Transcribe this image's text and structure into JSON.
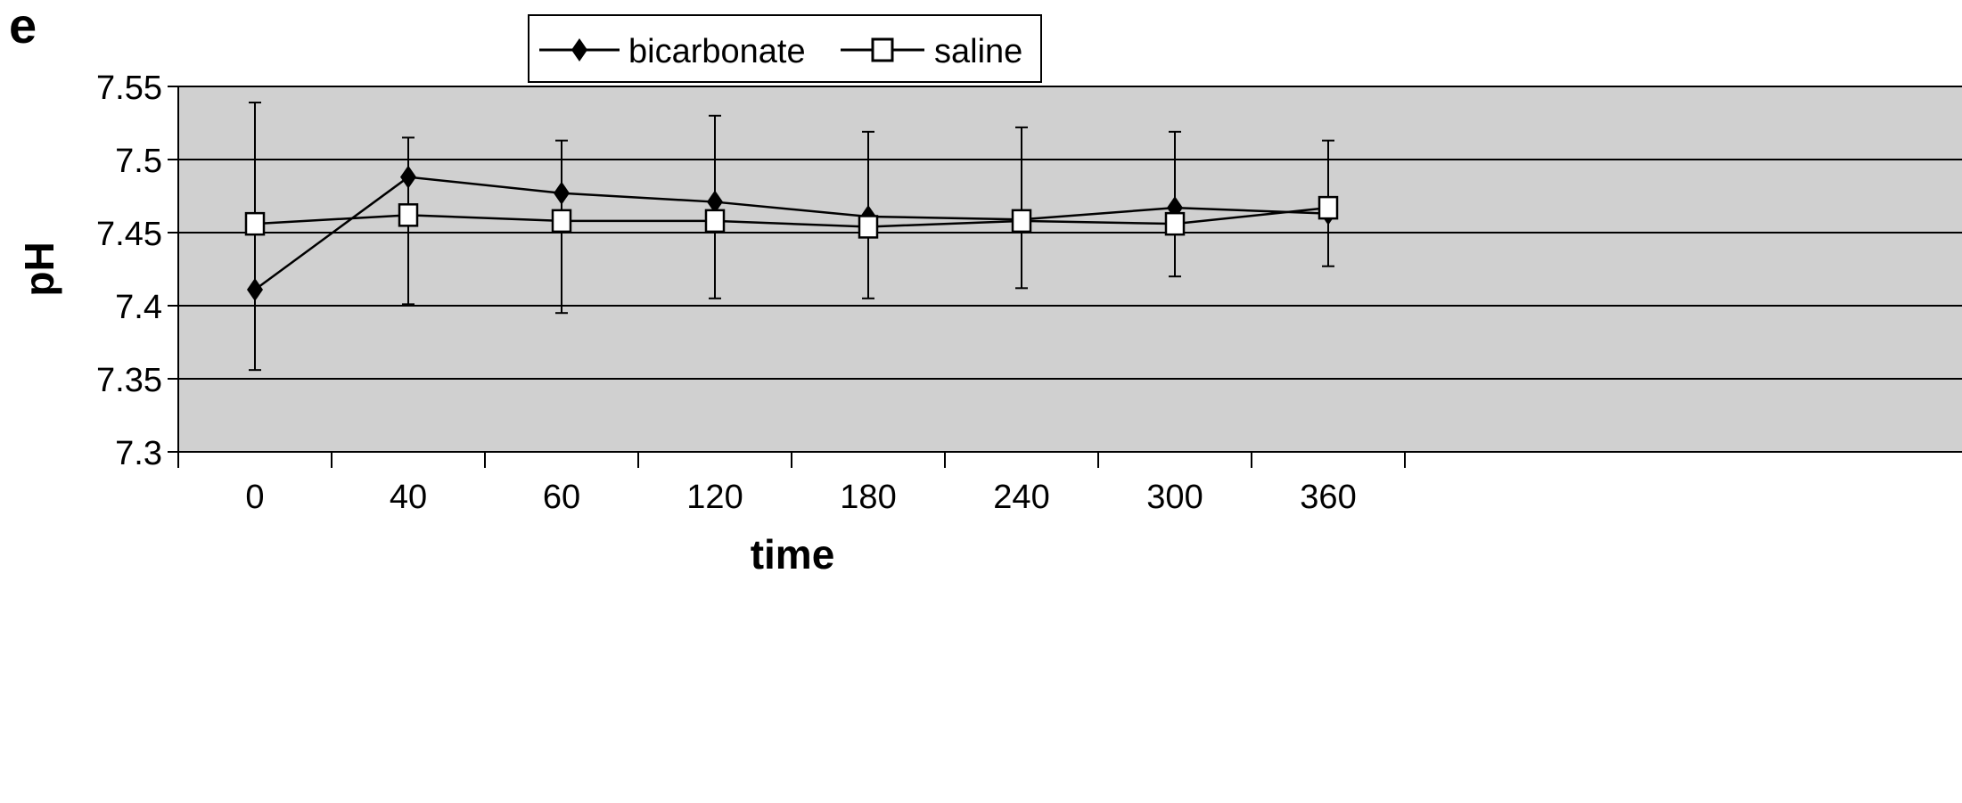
{
  "panel_label": "e",
  "chart_data": {
    "type": "line",
    "title": "",
    "xlabel": "time",
    "ylabel": "pH",
    "categories": [
      "0",
      "40",
      "60",
      "120",
      "180",
      "240",
      "300",
      "360"
    ],
    "ylim": [
      7.3,
      7.55
    ],
    "yticks": [
      "7.3",
      "7.35",
      "7.4",
      "7.45",
      "7.5",
      "7.55"
    ],
    "grid": "horizontal",
    "legend_position": "top-center",
    "series": [
      {
        "name": "bicarbonate",
        "marker": "diamond",
        "color": "#000000",
        "values": [
          7.411,
          7.488,
          7.477,
          7.471,
          7.461,
          7.459,
          7.467,
          7.463
        ],
        "error_low": [
          7.356,
          7.401,
          7.395,
          7.405,
          7.405,
          7.412,
          7.42,
          7.427
        ],
        "error_high": [
          7.539,
          7.515,
          7.513,
          7.53,
          7.519,
          7.522,
          7.519,
          7.513
        ]
      },
      {
        "name": "saline",
        "marker": "square",
        "color": "#000000",
        "values": [
          7.456,
          7.462,
          7.458,
          7.458,
          7.454,
          7.458,
          7.456,
          7.467
        ],
        "error_low": [
          7.456,
          7.401,
          7.395,
          7.405,
          7.405,
          7.412,
          7.42,
          7.427
        ],
        "error_high": [
          7.539,
          7.515,
          7.513,
          7.53,
          7.519,
          7.522,
          7.519,
          7.513
        ]
      }
    ],
    "colors": {
      "plot_background": "#d0d0d0",
      "gridline": "#000000",
      "line": "#000000"
    }
  }
}
